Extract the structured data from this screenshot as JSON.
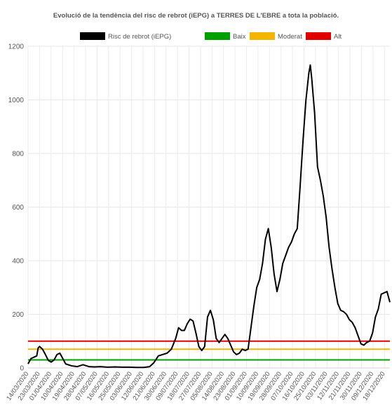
{
  "chart_data": {
    "type": "line",
    "title": "Evolució de la tendència del risc de rebrot (iEPG) a TERRES DE L'EBRE a tota la població.",
    "xlabel": "",
    "ylabel": "",
    "ylim": [
      0,
      1200
    ],
    "yticks": [
      0,
      200,
      400,
      600,
      800,
      1000,
      1200
    ],
    "grid": true,
    "legend_position": "top-center",
    "x_tick_labels": [
      "14/03/2020",
      "23/03/2020",
      "01/04/2020",
      "10/04/2020",
      "19/04/2020",
      "28/04/2020",
      "07/05/2020",
      "16/05/2020",
      "25/05/2020",
      "03/06/2020",
      "12/06/2020",
      "21/06/2020",
      "30/06/2020",
      "09/07/2020",
      "18/07/2020",
      "27/07/2020",
      "05/08/2020",
      "14/08/2020",
      "23/08/2020",
      "01/09/2020",
      "10/09/2020",
      "19/09/2020",
      "28/09/2020",
      "07/10/2020",
      "16/10/2020",
      "25/10/2020",
      "03/11/2020",
      "12/11/2020",
      "21/11/2020",
      "30/11/2020",
      "09/12/2020",
      "18/12/2020"
    ],
    "series": [
      {
        "name": "Risc de rebrot (iEPG)",
        "color": "#000000",
        "points": [
          [
            0,
            15
          ],
          [
            2,
            35
          ],
          [
            4,
            40
          ],
          [
            6,
            45
          ],
          [
            7,
            75
          ],
          [
            8,
            80
          ],
          [
            10,
            70
          ],
          [
            12,
            50
          ],
          [
            14,
            28
          ],
          [
            16,
            22
          ],
          [
            18,
            30
          ],
          [
            20,
            50
          ],
          [
            22,
            55
          ],
          [
            24,
            35
          ],
          [
            26,
            15
          ],
          [
            30,
            8
          ],
          [
            34,
            5
          ],
          [
            38,
            12
          ],
          [
            42,
            5
          ],
          [
            46,
            4
          ],
          [
            50,
            5
          ],
          [
            55,
            3
          ],
          [
            60,
            4
          ],
          [
            65,
            3
          ],
          [
            70,
            3
          ],
          [
            75,
            2
          ],
          [
            80,
            2
          ],
          [
            84,
            5
          ],
          [
            87,
            20
          ],
          [
            90,
            45
          ],
          [
            93,
            50
          ],
          [
            96,
            55
          ],
          [
            99,
            70
          ],
          [
            102,
            110
          ],
          [
            104,
            150
          ],
          [
            106,
            140
          ],
          [
            108,
            140
          ],
          [
            110,
            165
          ],
          [
            112,
            182
          ],
          [
            114,
            175
          ],
          [
            116,
            130
          ],
          [
            118,
            80
          ],
          [
            120,
            65
          ],
          [
            122,
            80
          ],
          [
            124,
            190
          ],
          [
            126,
            215
          ],
          [
            128,
            180
          ],
          [
            130,
            110
          ],
          [
            132,
            95
          ],
          [
            134,
            110
          ],
          [
            136,
            125
          ],
          [
            138,
            110
          ],
          [
            140,
            85
          ],
          [
            142,
            60
          ],
          [
            144,
            50
          ],
          [
            146,
            55
          ],
          [
            148,
            70
          ],
          [
            150,
            65
          ],
          [
            152,
            70
          ],
          [
            154,
            150
          ],
          [
            156,
            230
          ],
          [
            158,
            300
          ],
          [
            160,
            330
          ],
          [
            162,
            390
          ],
          [
            164,
            480
          ],
          [
            166,
            520
          ],
          [
            168,
            450
          ],
          [
            170,
            350
          ],
          [
            172,
            285
          ],
          [
            174,
            330
          ],
          [
            176,
            390
          ],
          [
            178,
            420
          ],
          [
            180,
            450
          ],
          [
            182,
            470
          ],
          [
            184,
            500
          ],
          [
            186,
            520
          ],
          [
            188,
            680
          ],
          [
            190,
            850
          ],
          [
            192,
            1000
          ],
          [
            194,
            1100
          ],
          [
            195,
            1130
          ],
          [
            196,
            1080
          ],
          [
            198,
            950
          ],
          [
            200,
            750
          ],
          [
            202,
            700
          ],
          [
            204,
            640
          ],
          [
            206,
            560
          ],
          [
            208,
            450
          ],
          [
            210,
            370
          ],
          [
            212,
            300
          ],
          [
            214,
            240
          ],
          [
            216,
            215
          ],
          [
            218,
            210
          ],
          [
            220,
            200
          ],
          [
            222,
            180
          ],
          [
            224,
            170
          ],
          [
            226,
            150
          ],
          [
            228,
            120
          ],
          [
            230,
            90
          ],
          [
            232,
            85
          ],
          [
            234,
            95
          ],
          [
            236,
            100
          ],
          [
            238,
            130
          ],
          [
            240,
            190
          ],
          [
            242,
            220
          ],
          [
            244,
            275
          ],
          [
            246,
            280
          ],
          [
            248,
            285
          ],
          [
            250,
            245
          ]
        ]
      },
      {
        "name": "Baix",
        "color": "#00a000",
        "constant": 30
      },
      {
        "name": "Moderat",
        "color": "#f2b600",
        "constant": 70
      },
      {
        "name": "Alt",
        "color": "#e00000",
        "constant": 100
      }
    ]
  }
}
